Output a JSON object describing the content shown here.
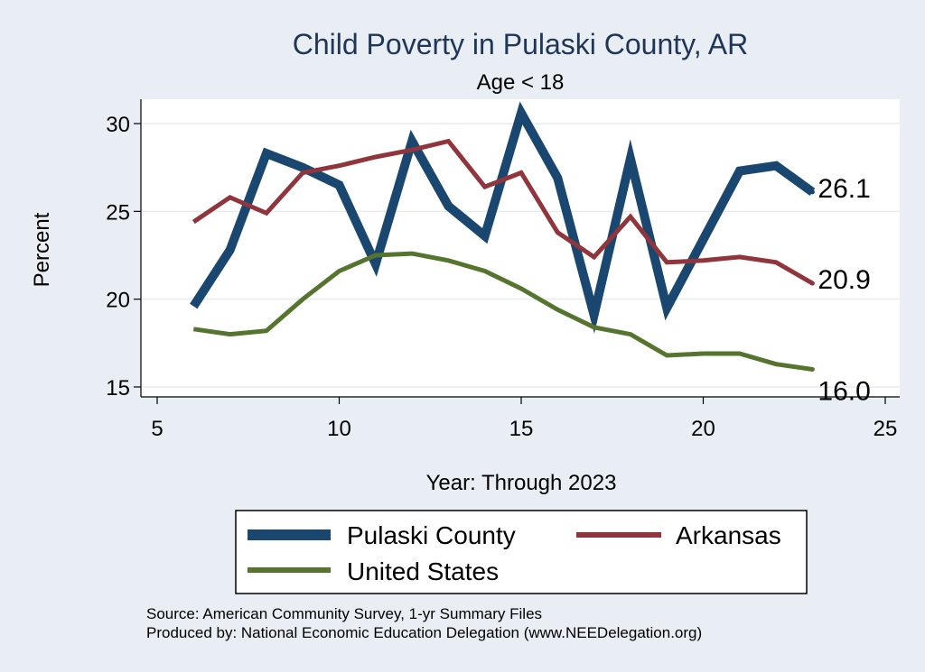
{
  "chart_data": {
    "type": "line",
    "title": "Child Poverty in Pulaski County, AR",
    "subtitle": "Age < 18",
    "xlabel": "Year: Through 2023",
    "ylabel": "Percent",
    "xlim": [
      5,
      25
    ],
    "ylim": [
      15,
      31
    ],
    "xticks": [
      5,
      10,
      15,
      20,
      25
    ],
    "yticks": [
      15,
      20,
      25,
      30
    ],
    "grid": true,
    "legend_position": "bottom",
    "series": [
      {
        "name": "Pulaski County",
        "color": "#1a476f",
        "x": [
          6,
          7,
          8,
          9,
          10,
          11,
          12,
          13,
          14,
          15,
          16,
          17,
          18,
          19,
          20,
          21,
          22,
          23
        ],
        "values": [
          19.6,
          22.8,
          28.3,
          27.5,
          26.5,
          22.0,
          29.0,
          25.3,
          23.6,
          30.6,
          26.9,
          19.1,
          28.0,
          19.5,
          23.4,
          27.3,
          27.6,
          26.1
        ],
        "end_label": "26.1"
      },
      {
        "name": "Arkansas",
        "color": "#90353b",
        "x": [
          6,
          7,
          8,
          9,
          10,
          11,
          12,
          13,
          14,
          15,
          16,
          17,
          18,
          19,
          20,
          21,
          22,
          23
        ],
        "values": [
          24.4,
          25.8,
          24.9,
          27.2,
          27.6,
          28.1,
          28.5,
          29.0,
          26.4,
          27.2,
          23.8,
          22.4,
          24.7,
          22.1,
          22.2,
          22.4,
          22.1,
          20.9
        ],
        "end_label": "20.9"
      },
      {
        "name": "United States",
        "color": "#55752f",
        "x": [
          6,
          7,
          8,
          9,
          10,
          11,
          12,
          13,
          14,
          15,
          16,
          17,
          18,
          19,
          20,
          21,
          22,
          23
        ],
        "values": [
          18.3,
          18.0,
          18.2,
          20.0,
          21.6,
          22.5,
          22.6,
          22.2,
          21.6,
          20.6,
          19.4,
          18.4,
          18.0,
          16.8,
          16.9,
          16.9,
          16.3,
          16.0
        ],
        "end_label": "16.0"
      }
    ],
    "notes": [
      "Source: American Community Survey, 1-yr Summary Files",
      "Produced by: National Economic Education Delegation (www.NEEDelegation.org)"
    ]
  }
}
